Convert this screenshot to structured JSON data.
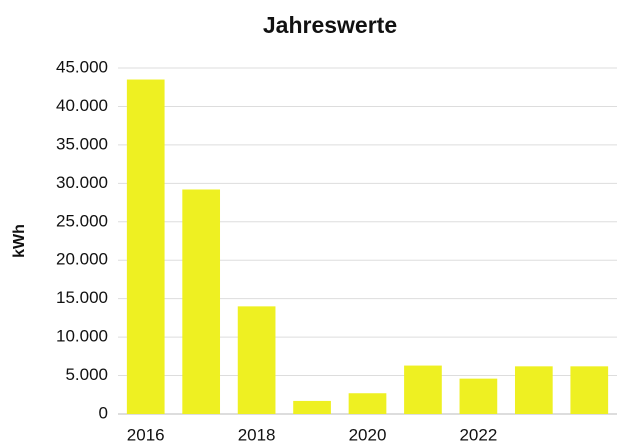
{
  "chart_data": {
    "type": "bar",
    "title": "Jahreswerte",
    "y_label": "kWh",
    "categories": [
      "2016",
      null,
      "2018",
      null,
      "2020",
      null,
      "2022",
      null,
      null
    ],
    "values": [
      43500,
      29200,
      14000,
      1700,
      2700,
      6300,
      4600,
      6200,
      6200
    ],
    "color": "#eef022",
    "ylim": [
      0,
      45000
    ],
    "yticks": [
      0,
      {
        "value": 5000,
        "label": "5.000"
      },
      {
        "value": 10000,
        "label": "10.000"
      },
      {
        "value": 15000,
        "label": "15.000"
      },
      {
        "value": 20000,
        "label": "20.000"
      },
      {
        "value": 25000,
        "label": "25.000"
      },
      {
        "value": 30000,
        "label": "30.000"
      },
      {
        "value": 35000,
        "label": "35.000"
      },
      {
        "value": 40000,
        "label": "40.000"
      },
      {
        "value": 45000,
        "label": "45.000"
      }
    ],
    "grid": true
  }
}
